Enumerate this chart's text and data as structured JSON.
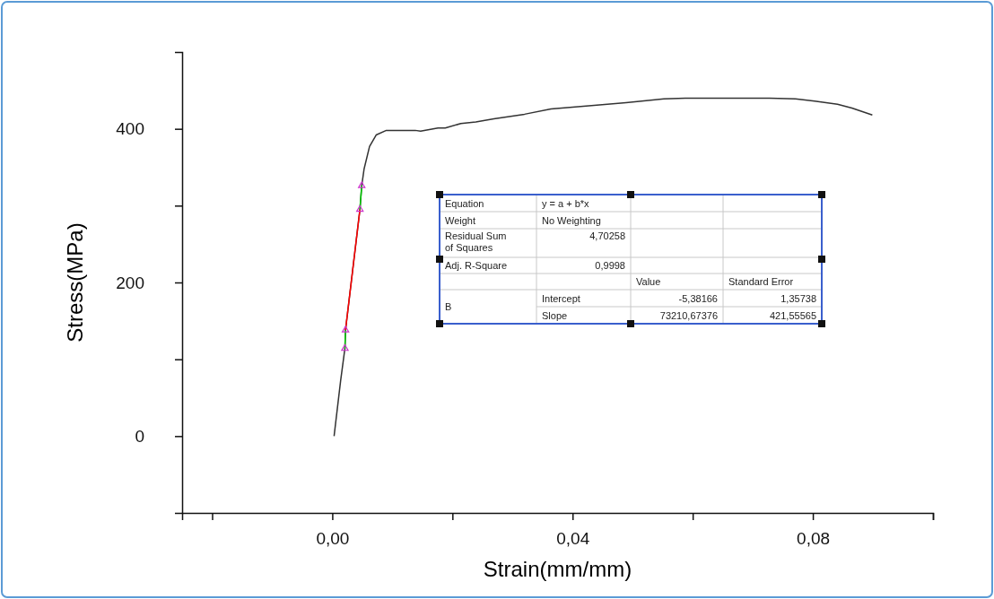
{
  "chart_data": {
    "type": "line",
    "xlabel": "Strain(mm/mm)",
    "ylabel": "Stress(MPa)",
    "xlim": [
      -0.025,
      0.1
    ],
    "xticks": [
      {
        "value": -0.02,
        "label": null
      },
      {
        "value": 0,
        "label": "0,00"
      },
      {
        "value": 0.02,
        "label": null
      },
      {
        "value": 0.04,
        "label": "0,04"
      },
      {
        "value": 0.06,
        "label": null
      },
      {
        "value": 0.08,
        "label": "0,08"
      },
      {
        "value": 0.1,
        "label": null
      }
    ],
    "ylim": [
      -100,
      500
    ],
    "yticks": [
      {
        "value": 0,
        "label": "0"
      },
      {
        "value": 100,
        "label": null
      },
      {
        "value": 200,
        "label": "200"
      },
      {
        "value": 300,
        "label": null
      },
      {
        "value": 400,
        "label": "400"
      }
    ],
    "series": [
      {
        "color": "#333333",
        "x": [
          0.0003,
          0.0014,
          0.0021,
          0.0022,
          0.0046,
          0.0049,
          0.0053,
          0.0062,
          0.0073,
          0.009,
          0.0138,
          0.0147,
          0.0176,
          0.0188,
          0.0214,
          0.0239,
          0.0269,
          0.032,
          0.0364,
          0.0427,
          0.0489,
          0.0552,
          0.0589,
          0.0728,
          0.0771,
          0.0803,
          0.0841,
          0.0865,
          0.0899
        ],
        "values": [
          0,
          73,
          114,
          138,
          295,
          326,
          348,
          377,
          392,
          398,
          398,
          397,
          401,
          401,
          407,
          409,
          413,
          419,
          426,
          430,
          434,
          439,
          440,
          440,
          439,
          436,
          432,
          427,
          418
        ]
      },
      {
        "type": "line",
        "color": "#ff0000",
        "x": [
          0.0022,
          0.0046
        ],
        "values": [
          138,
          295
        ]
      },
      {
        "type": "line",
        "color": "#00cc00",
        "x": [
          0.0021,
          0.0022,
          0.0034,
          0.0046,
          0.0049
        ],
        "values": [
          114,
          138,
          null,
          295,
          326
        ]
      },
      {
        "type": "scatter",
        "color": "#cc33cc",
        "marker": "triangle",
        "x": [
          0.0021,
          0.0022,
          0.0046,
          0.0049
        ],
        "values": [
          114,
          138,
          295,
          326
        ]
      }
    ],
    "annotations": [
      "Equation",
      "y = a + b*x",
      "Weight",
      "No Weighting",
      "Residual Sum of Squares",
      "4,70258",
      "Adj. R-Square",
      "0,9998",
      "Value",
      "Standard Error",
      "B",
      "Intercept",
      "-5,38166",
      "1,35738",
      "Slope",
      "73210,67376",
      "421,55565"
    ]
  }
}
